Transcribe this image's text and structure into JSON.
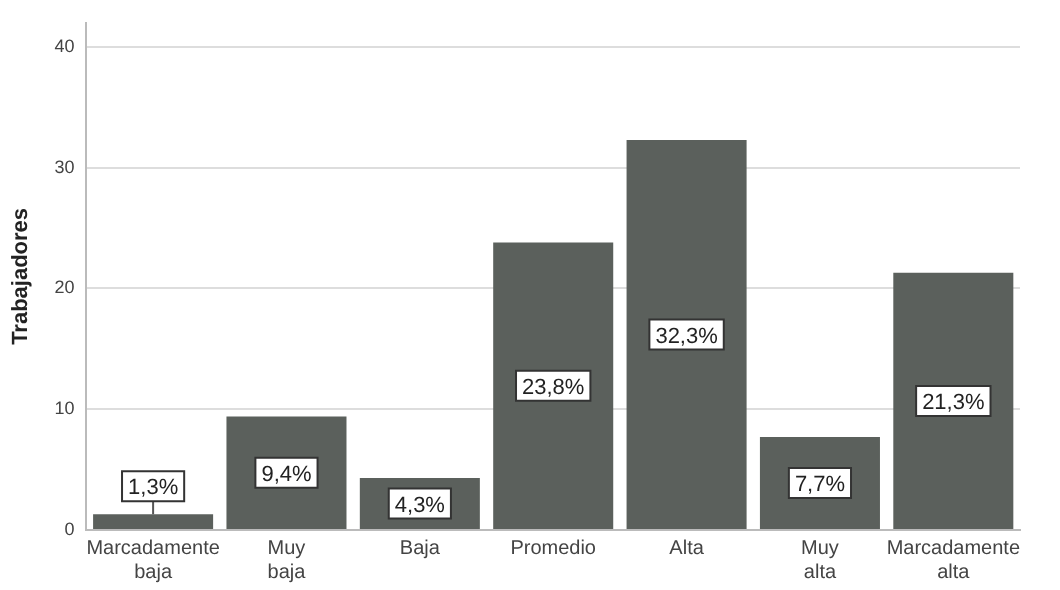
{
  "chart_data": {
    "type": "bar",
    "ylabel": "Trabajadores",
    "categories": [
      "Marcadamente baja",
      "Muy baja",
      "Baja",
      "Promedio",
      "Alta",
      "Muy alta",
      "Marcadamente alta"
    ],
    "values": [
      1.3,
      9.4,
      4.3,
      23.8,
      32.3,
      7.7,
      21.3
    ],
    "value_labels": [
      "1,3%",
      "9,4%",
      "4,3%",
      "23,8%",
      "32,3%",
      "7,7%",
      "21,3%"
    ],
    "color": "#5b605c",
    "ylim": [
      0,
      42
    ],
    "yticks": [
      0,
      10,
      20,
      30,
      40
    ],
    "grid": "y",
    "legend": false
  }
}
